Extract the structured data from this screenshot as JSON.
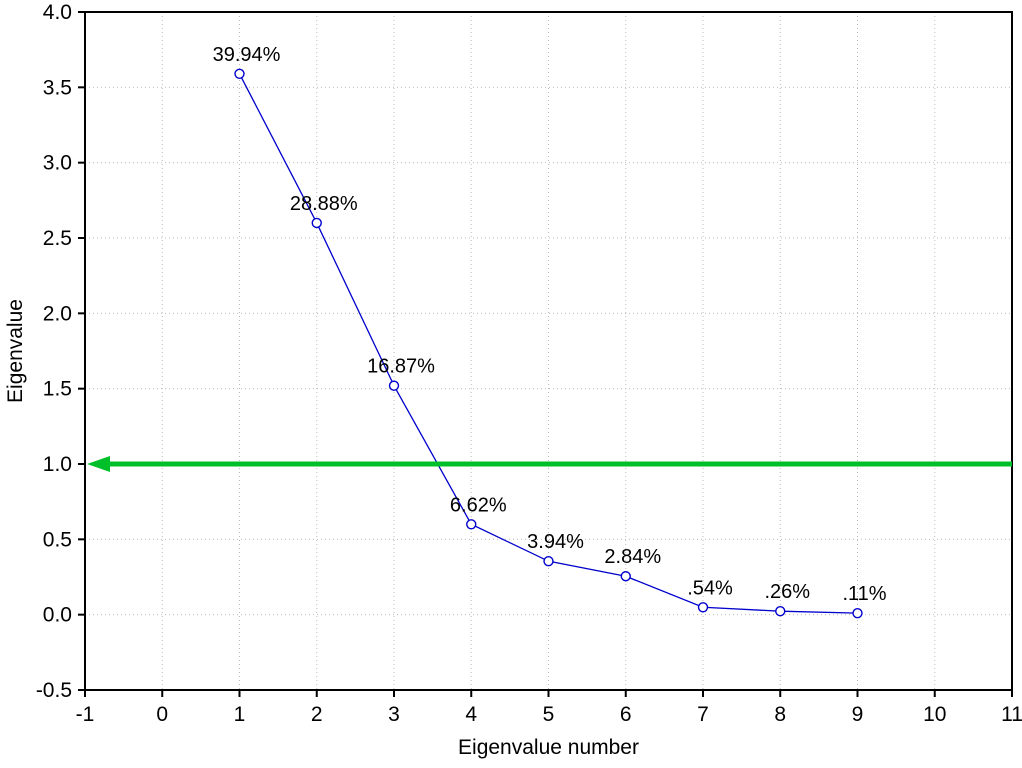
{
  "chart_data": {
    "type": "line",
    "title": "",
    "xlabel": "Eigenvalue number",
    "ylabel": "Eigenvalue",
    "x": [
      1,
      2,
      3,
      4,
      5,
      6,
      7,
      8,
      9
    ],
    "values": [
      3.59,
      2.6,
      1.52,
      0.6,
      0.355,
      0.255,
      0.049,
      0.023,
      0.01
    ],
    "point_labels": [
      "39.94%",
      "28.88%",
      "16.87%",
      "6.62%",
      "3.94%",
      "2.84%",
      ".54%",
      ".26%",
      ".11%"
    ],
    "xlim": [
      -1,
      11
    ],
    "ylim": [
      -0.5,
      4.0
    ],
    "x_ticks": [
      -1,
      0,
      1,
      2,
      3,
      4,
      5,
      6,
      7,
      8,
      9,
      10,
      11
    ],
    "y_ticks": [
      -0.5,
      0.0,
      0.5,
      1.0,
      1.5,
      2.0,
      2.5,
      3.0,
      3.5,
      4.0
    ],
    "grid": true,
    "legend": "none",
    "series_color": "#0000cd",
    "marker": "circle-open",
    "marker_fill": "#ffffff",
    "grid_color": "#bbbbbb",
    "axis_color": "#000000",
    "label_color": "#000000",
    "threshold_line": {
      "y": 1.0,
      "color": "#00c02a",
      "style": "left-arrow",
      "width": 5
    }
  }
}
